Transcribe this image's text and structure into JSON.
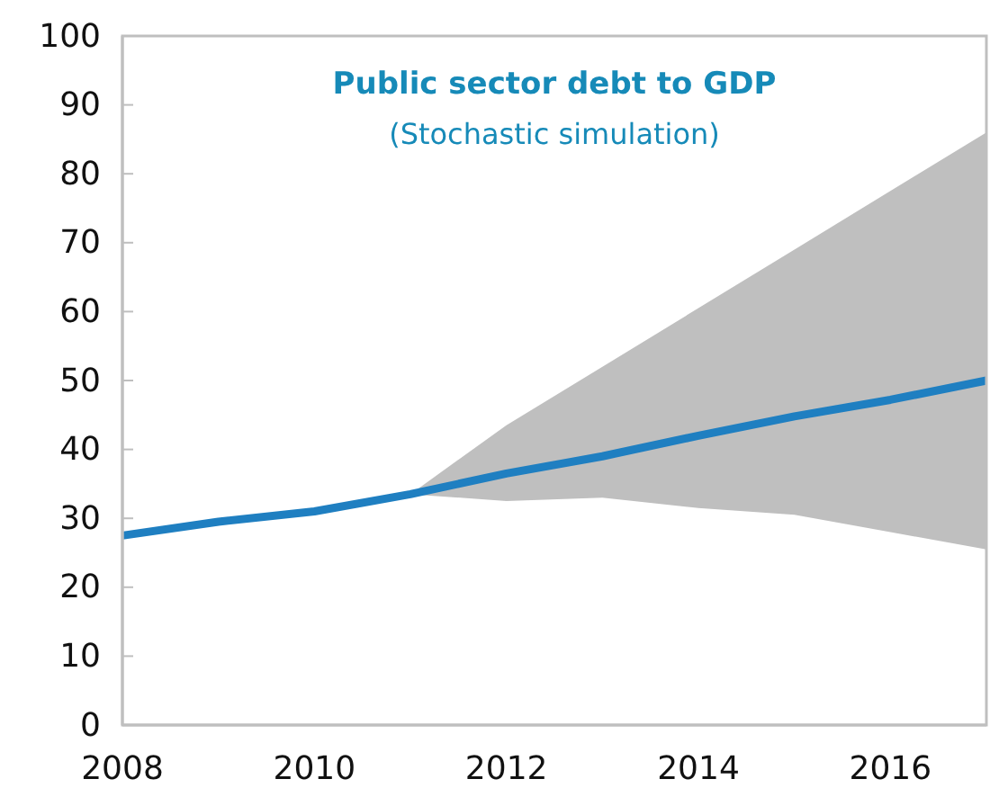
{
  "chart_data": {
    "type": "line",
    "title": "Public sector debt to GDP",
    "subtitle": "(Stochastic simulation)",
    "x": [
      2008,
      2009,
      2010,
      2011,
      2012,
      2013,
      2014,
      2015,
      2016,
      2017
    ],
    "series": [
      {
        "color": "#1f7fc1",
        "values": [
          27.5,
          29.5,
          31,
          33.5,
          36.5,
          39,
          42,
          44.8,
          47.2,
          50
        ],
        "lower": [
          null,
          null,
          null,
          33.5,
          32.5,
          33,
          31.5,
          30.5,
          28,
          25.5
        ],
        "upper": [
          null,
          null,
          null,
          33.5,
          43.5,
          52,
          60.5,
          69,
          77.5,
          86
        ]
      }
    ],
    "xlim": [
      2008,
      2017
    ],
    "xticks": [
      2008,
      2010,
      2012,
      2014,
      2016
    ],
    "ylim": [
      0,
      100
    ],
    "yticks": [
      0,
      10,
      20,
      30,
      40,
      50,
      60,
      70,
      80,
      90,
      100
    ],
    "grid": false,
    "marker": "none",
    "line_style": "solid"
  }
}
